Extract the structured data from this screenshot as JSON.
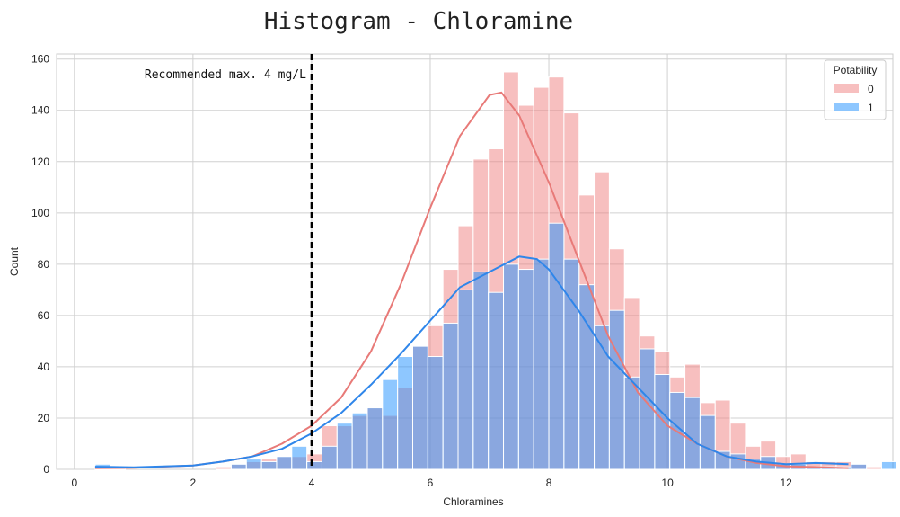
{
  "chart_data": {
    "type": "bar",
    "title": "Histogram - Chloramine",
    "xlabel": "Chloramines",
    "ylabel": "Count",
    "xlim": [
      -0.3,
      13.8
    ],
    "ylim": [
      0,
      162
    ],
    "xticks": [
      0,
      2,
      4,
      6,
      8,
      10,
      12
    ],
    "yticks": [
      0,
      20,
      40,
      60,
      80,
      100,
      120,
      140,
      160
    ],
    "grid": true,
    "bin_start": 0.35,
    "bin_width": 0.255,
    "legend": {
      "title": "Potability",
      "placement": "top-right"
    },
    "series": [
      {
        "name": "0",
        "color": "#f08080",
        "values": [
          0,
          0,
          0,
          0,
          0,
          0,
          0,
          0,
          1,
          2,
          3,
          4,
          5,
          5,
          6,
          17,
          17,
          21,
          24,
          21,
          32,
          48,
          56,
          78,
          95,
          121,
          125,
          155,
          142,
          149,
          153,
          139,
          107,
          116,
          86,
          67,
          52,
          46,
          36,
          41,
          26,
          27,
          18,
          9,
          11,
          5,
          6,
          3,
          3,
          3,
          2,
          1,
          0
        ]
      },
      {
        "name": "1",
        "color": "#1e90ff",
        "values": [
          2,
          1,
          0,
          0,
          0,
          0,
          0,
          0,
          0,
          2,
          4,
          3,
          5,
          9,
          3,
          9,
          18,
          22,
          24,
          35,
          44,
          48,
          44,
          57,
          70,
          77,
          69,
          80,
          78,
          82,
          96,
          82,
          72,
          56,
          62,
          36,
          47,
          37,
          30,
          28,
          21,
          7,
          6,
          4,
          5,
          2,
          2,
          1,
          1,
          1,
          2,
          0,
          3
        ]
      }
    ],
    "kde": [
      {
        "name": "0",
        "color": "#e87a78",
        "points": [
          [
            0.35,
            0.5
          ],
          [
            1.0,
            0.6
          ],
          [
            2.0,
            1.5
          ],
          [
            2.5,
            3.0
          ],
          [
            3.0,
            5.0
          ],
          [
            3.5,
            10.0
          ],
          [
            4.0,
            17.0
          ],
          [
            4.5,
            28.0
          ],
          [
            5.0,
            46.0
          ],
          [
            5.5,
            72.0
          ],
          [
            6.0,
            102.0
          ],
          [
            6.5,
            130.0
          ],
          [
            7.0,
            146.0
          ],
          [
            7.2,
            147.0
          ],
          [
            7.5,
            138.0
          ],
          [
            8.0,
            112.0
          ],
          [
            8.5,
            82.0
          ],
          [
            9.0,
            52.0
          ],
          [
            9.5,
            30.0
          ],
          [
            10.0,
            17.0
          ],
          [
            10.5,
            10.0
          ],
          [
            11.0,
            5.0
          ],
          [
            11.5,
            2.5
          ],
          [
            12.0,
            1.2
          ],
          [
            13.05,
            0.5
          ]
        ]
      },
      {
        "name": "1",
        "color": "#2f86ea",
        "points": [
          [
            0.35,
            1.0
          ],
          [
            1.0,
            0.8
          ],
          [
            2.0,
            1.5
          ],
          [
            2.5,
            3.0
          ],
          [
            3.0,
            5.0
          ],
          [
            3.5,
            8.0
          ],
          [
            4.0,
            14.0
          ],
          [
            4.5,
            22.0
          ],
          [
            5.0,
            33.0
          ],
          [
            5.5,
            45.0
          ],
          [
            6.0,
            58.0
          ],
          [
            6.5,
            71.0
          ],
          [
            7.0,
            77.0
          ],
          [
            7.5,
            83.0
          ],
          [
            7.8,
            82.0
          ],
          [
            8.0,
            78.0
          ],
          [
            8.5,
            62.0
          ],
          [
            9.0,
            44.0
          ],
          [
            9.5,
            32.0
          ],
          [
            10.0,
            20.0
          ],
          [
            10.5,
            10.0
          ],
          [
            11.0,
            5.0
          ],
          [
            11.5,
            3.0
          ],
          [
            12.0,
            2.0
          ],
          [
            12.5,
            2.5
          ],
          [
            13.05,
            2.0
          ]
        ]
      }
    ],
    "reference_line": {
      "x": 4,
      "label": "Recommended max. 4 mg/L"
    }
  }
}
